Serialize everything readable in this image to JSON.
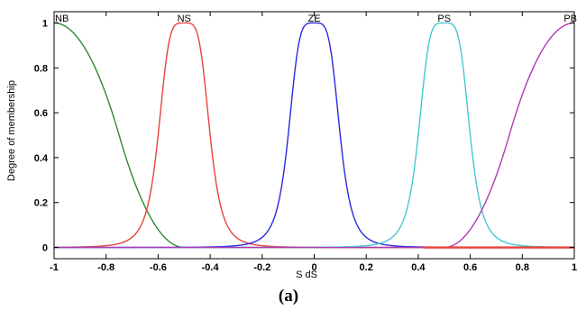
{
  "chart_data": {
    "type": "line",
    "xlabel": "S dS",
    "ylabel": "Degree of membership",
    "xlim": [
      -1,
      1
    ],
    "ylim": [
      -0.05,
      1.05
    ],
    "xticks": [
      "-1",
      "-0.8",
      "-0.6",
      "-0.4",
      "-0.2",
      "0",
      "0.2",
      "0.4",
      "0.6",
      "0.8",
      "1"
    ],
    "yticks": [
      "0",
      "0.2",
      "0.4",
      "0.6",
      "0.8",
      "1"
    ],
    "grid": false,
    "series": [
      {
        "name": "NB",
        "color": "#2e8b2e",
        "shape": "zmf",
        "params": [
          -1.0,
          -0.5
        ],
        "x": [
          -1,
          -0.95,
          -0.9,
          -0.8,
          -0.75,
          -0.7,
          -0.6,
          -0.5,
          -0.4
        ],
        "y": [
          1,
          0.99,
          0.92,
          0.68,
          0.5,
          0.32,
          0.08,
          0,
          0
        ]
      },
      {
        "name": "NS",
        "color": "#e8423a",
        "shape": "gbell",
        "params": [
          0.1,
          2.2,
          -0.5
        ],
        "x": [
          -1,
          -0.8,
          -0.7,
          -0.6,
          -0.5,
          -0.4,
          -0.3,
          -0.2,
          0,
          0.2
        ],
        "y": [
          0.04,
          0.28,
          0.6,
          0.95,
          1,
          0.95,
          0.6,
          0.28,
          0.05,
          0.01
        ]
      },
      {
        "name": "ZE",
        "color": "#2a2ae0",
        "shape": "gbell",
        "params": [
          0.1,
          2.2,
          0.0
        ],
        "x": [
          -0.4,
          -0.3,
          -0.2,
          -0.1,
          0,
          0.1,
          0.2,
          0.3,
          0.4
        ],
        "y": [
          0.05,
          0.28,
          0.6,
          0.95,
          1,
          0.95,
          0.6,
          0.28,
          0.05
        ]
      },
      {
        "name": "PS",
        "color": "#45c8d0",
        "shape": "gbell",
        "params": [
          0.1,
          2.2,
          0.5
        ],
        "x": [
          -0.2,
          0,
          0.2,
          0.3,
          0.4,
          0.5,
          0.6,
          0.7,
          0.8,
          1
        ],
        "y": [
          0.01,
          0.05,
          0.28,
          0.6,
          0.95,
          1,
          0.95,
          0.6,
          0.28,
          0.04
        ]
      },
      {
        "name": "PB",
        "color": "#b03ab5",
        "shape": "smf",
        "params": [
          0.5,
          1.0
        ],
        "x": [
          0.4,
          0.5,
          0.6,
          0.7,
          0.75,
          0.8,
          0.9,
          0.95,
          1
        ],
        "y": [
          0,
          0,
          0.08,
          0.32,
          0.5,
          0.68,
          0.92,
          0.99,
          1
        ]
      }
    ]
  },
  "caption": "(a)"
}
